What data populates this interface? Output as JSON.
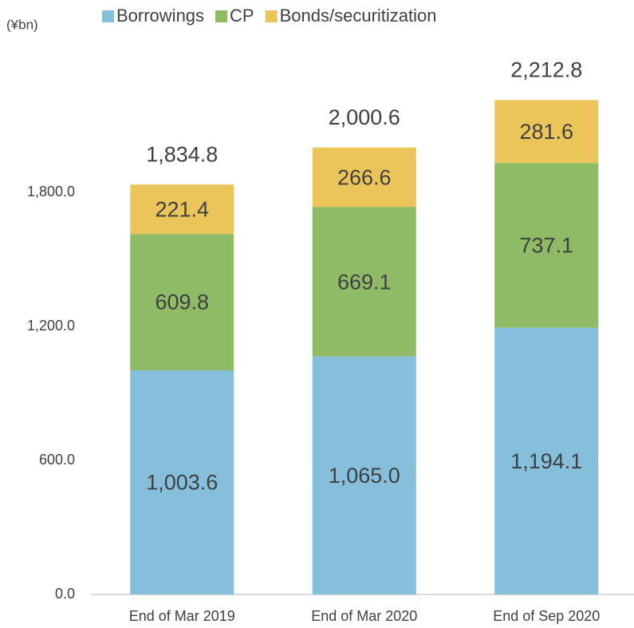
{
  "chart_data": {
    "type": "stacked_bar",
    "y_label": "(¥bn)",
    "categories": [
      "End of Mar 2019",
      "End of Mar 2020",
      "End of Sep 2020"
    ],
    "series": [
      {
        "name": "Borrowings",
        "color": "#85bfdc",
        "values": [
          1003.6,
          1065.0,
          1194.1
        ],
        "value_labels": [
          "1,003.6",
          "1,065.0",
          "1,194.1"
        ]
      },
      {
        "name": "CP",
        "color": "#8fbb67",
        "values": [
          609.8,
          669.1,
          737.1
        ]
      },
      {
        "name": "Bonds/securitization",
        "color": "#ecc55a",
        "values": [
          221.4,
          266.6,
          281.6
        ]
      }
    ],
    "totals": [
      1834.8,
      2000.6,
      2212.8
    ],
    "total_labels": [
      "1,834.8",
      "2,000.6",
      "2,212.8"
    ],
    "ylim": [
      0,
      2400
    ],
    "yticks": [
      {
        "value": 0,
        "label": "0.0"
      },
      {
        "value": 600,
        "label": "600.0"
      },
      {
        "value": 1200,
        "label": "1,200.0"
      },
      {
        "value": 1800,
        "label": "1,800.0"
      }
    ],
    "grid": false
  }
}
